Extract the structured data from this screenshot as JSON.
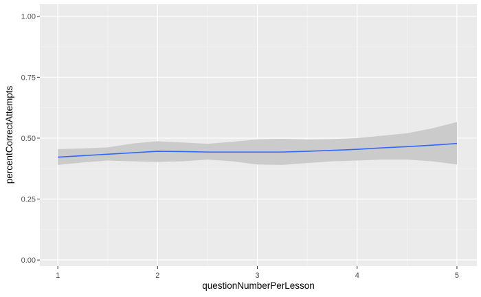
{
  "chart_data": {
    "type": "line",
    "xlabel": "questionNumberPerLesson",
    "ylabel": "percentCorrectAttempts",
    "xlim": [
      0.82,
      5.2
    ],
    "ylim": [
      -0.025,
      1.05
    ],
    "x_ticks": [
      1,
      2,
      3,
      4,
      5
    ],
    "x_tick_labels": [
      "1",
      "2",
      "3",
      "4",
      "5"
    ],
    "y_ticks": [
      0,
      0.25,
      0.5,
      0.75,
      1
    ],
    "y_tick_labels": [
      "0.00",
      "0.25",
      "0.50",
      "0.75",
      "1.00"
    ],
    "grid": true,
    "legend": "none",
    "series": [
      {
        "x": [
          1,
          1.25,
          1.5,
          1.75,
          2,
          2.25,
          2.5,
          2.75,
          3,
          3.25,
          3.5,
          3.75,
          4,
          4.25,
          4.5,
          4.75,
          5
        ],
        "y": [
          0.422,
          0.428,
          0.434,
          0.44,
          0.446,
          0.445,
          0.443,
          0.443,
          0.443,
          0.443,
          0.446,
          0.45,
          0.454,
          0.46,
          0.465,
          0.471,
          0.478
        ],
        "lower": [
          0.39,
          0.4,
          0.408,
          0.405,
          0.402,
          0.405,
          0.412,
          0.405,
          0.392,
          0.39,
          0.398,
          0.405,
          0.408,
          0.412,
          0.412,
          0.405,
          0.392
        ],
        "upper": [
          0.455,
          0.458,
          0.462,
          0.478,
          0.487,
          0.482,
          0.477,
          0.485,
          0.495,
          0.497,
          0.494,
          0.496,
          0.5,
          0.51,
          0.52,
          0.54,
          0.566
        ],
        "color": "#3366ff",
        "band_color": "#cbcbcb"
      }
    ]
  },
  "colors": {
    "panel_background": "#ebebeb",
    "grid_major": "#ffffff",
    "grid_minor": "#f5f5f5"
  }
}
